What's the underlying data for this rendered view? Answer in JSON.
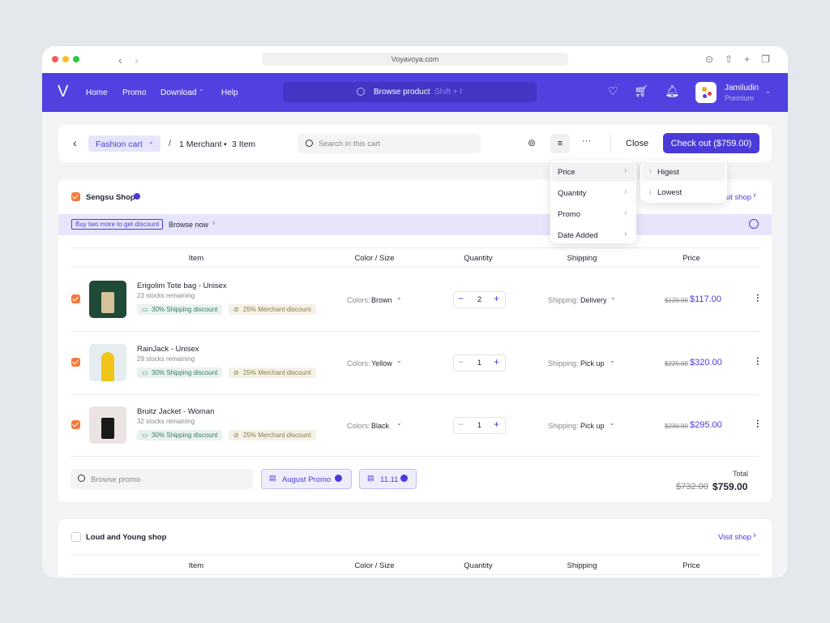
{
  "browser": {
    "url": "Voyavoya.com"
  },
  "nav": {
    "links": [
      "Home",
      "Promo",
      "Download",
      "Help"
    ],
    "search": "Browse product",
    "shortcut": "Shift + I",
    "user": "Jamiludin",
    "plan": "Premium"
  },
  "cart_bar": {
    "cart": "Fashion cart",
    "merchants": "1 Merchant",
    "separator": "•",
    "items": "3 Item",
    "search": "Search in this cart",
    "close": "Close",
    "checkout": "Check out ($759.00)"
  },
  "sort_menu": {
    "options": [
      "Price",
      "Quantity",
      "Promo",
      "Date Added"
    ],
    "sub_options": [
      "Higest",
      "Lowest"
    ]
  },
  "shops": [
    {
      "name": "Sengsu Shop",
      "visit": "Visit shop",
      "banner": "Buy two more to get discount",
      "browse": "Browse now",
      "columns": [
        "Item",
        "Color / Size",
        "Quantity",
        "Shipping",
        "Price"
      ],
      "items": [
        {
          "name": "Erigolim Tote bag - Unisex",
          "stock": "23 stocks remaining",
          "discounts": [
            "30% Shipping discount",
            "25% Merchant discount"
          ],
          "color_label": "Colors:",
          "color": "Brown",
          "quantity": "2",
          "shipping_label": "Shipping:",
          "shipping": "Delivery",
          "old_price": "$120.00",
          "price": "$117.00"
        },
        {
          "name": "RainJack - Unisex",
          "stock": "29 stocks remaining",
          "discounts": [
            "30% Shipping discount",
            "25% Merchant discount"
          ],
          "color_label": "Colors:",
          "color": "Yellow",
          "quantity": "1",
          "shipping_label": "Shipping:",
          "shipping": "Pick up",
          "old_price": "$225.00",
          "price": "$320.00"
        },
        {
          "name": "Bruitz Jacket - Woman",
          "stock": "32 stocks remaining",
          "discounts": [
            "30% Shipping discount",
            "25% Merchant discount"
          ],
          "color_label": "Colors:",
          "color": "Black",
          "quantity": "1",
          "shipping_label": "Shipping:",
          "shipping": "Pick up",
          "old_price": "$230.00",
          "price": "$295.00"
        }
      ],
      "promo_search": "Browse promo",
      "promos": [
        "August Promo",
        "11.11"
      ],
      "total_label": "Total",
      "total_old": "$732.00",
      "total": "$759.00"
    },
    {
      "name": "Loud and Young shop",
      "visit": "Visit shop",
      "columns": [
        "Item",
        "Color / Size",
        "Quantity",
        "Shipping",
        "Price"
      ]
    }
  ]
}
